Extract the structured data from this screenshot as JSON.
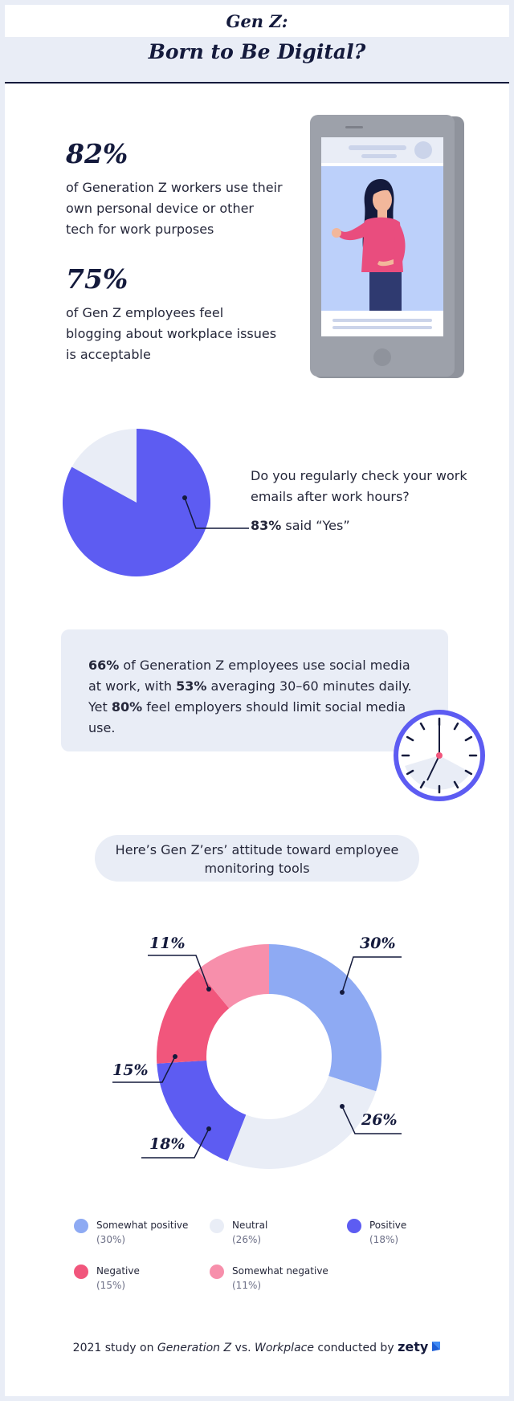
{
  "header": {
    "title_line1": "Gen Z:",
    "title_line2": "Born to Be Digital?"
  },
  "stats": [
    {
      "value": "82%",
      "text": "of Generation Z workers use their own personal device or other tech for work purposes"
    },
    {
      "value": "75%",
      "text": "of Gen Z employees feel blogging about workplace issues is acceptable"
    }
  ],
  "email_question": {
    "question": "Do you regularly check your work emails after work hours?",
    "answer_value": "83%",
    "answer_rest": " said “Yes”",
    "yes_fraction": 0.83
  },
  "social": {
    "p1_bold": "66%",
    "p1": " of Generation Z employees use social media at work, with ",
    "p2_bold": "53%",
    "p2": " averaging 30–60 minutes daily. Yet ",
    "p3_bold": "80%",
    "p3": " feel employers should limit social media use."
  },
  "monitoring_title": "Here’s Gen Z’ers’ attitude toward employee monitoring tools",
  "chart_data": {
    "type": "pie",
    "title": "Here’s Gen Z’ers’ attitude toward employee monitoring tools",
    "categories": [
      "Somewhat positive",
      "Neutral",
      "Positive",
      "Negative",
      "Somewhat negative"
    ],
    "values": [
      30,
      26,
      18,
      15,
      11
    ],
    "labels": [
      "30%",
      "26%",
      "18%",
      "15%",
      "11%"
    ],
    "legend_pct": [
      "(30%)",
      "(26%)",
      "(18%)",
      "(15%)",
      "(11%)"
    ],
    "colors": [
      "#8eaaf3",
      "#e9edf6",
      "#5d5cf2",
      "#f1567c",
      "#f78fab"
    ],
    "legend": "bottom"
  },
  "colors": {
    "accent": "#5d5cf2",
    "navy": "#141a3c",
    "light": "#e9edf6",
    "pink": "#f1567c"
  },
  "footer": {
    "prefix": "2021 study on ",
    "italic1": "Generation Z",
    "mid": " vs. ",
    "italic2": "Workplace",
    "suffix": " conducted by ",
    "brand": "zety"
  }
}
